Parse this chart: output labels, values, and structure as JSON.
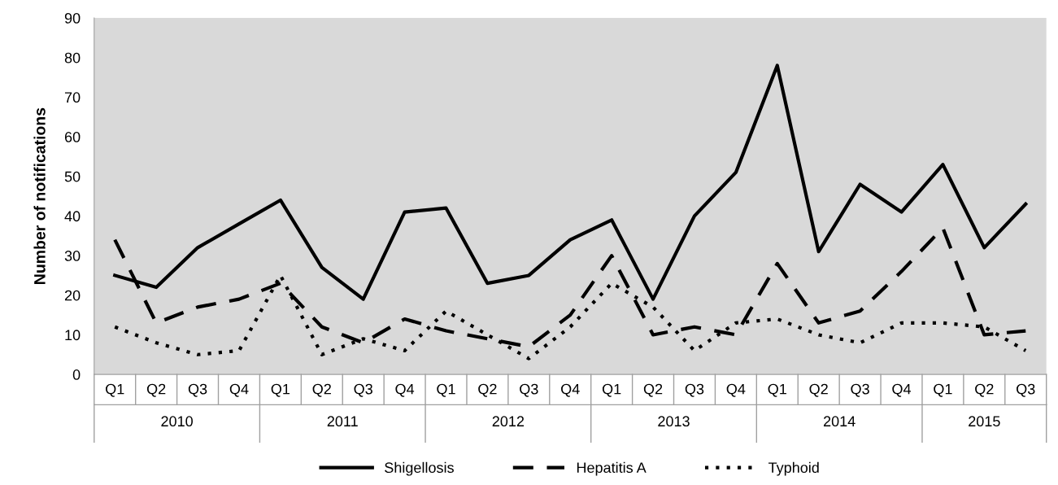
{
  "chart_data": {
    "type": "line",
    "ylabel": "Number of notifications",
    "categories": [
      "Q1",
      "Q2",
      "Q3",
      "Q4",
      "Q1",
      "Q2",
      "Q3",
      "Q4",
      "Q1",
      "Q2",
      "Q3",
      "Q4",
      "Q1",
      "Q2",
      "Q3",
      "Q4",
      "Q1",
      "Q2",
      "Q3",
      "Q4",
      "Q1",
      "Q2",
      "Q3"
    ],
    "annotations": [
      "2010",
      "2011",
      "2012",
      "2013",
      "2014",
      "2015"
    ],
    "series": [
      {
        "name": "Shigellosis",
        "color": "#000000",
        "line_style": "solid",
        "values": [
          25,
          22,
          32,
          38,
          44,
          27,
          19,
          41,
          42,
          23,
          25,
          34,
          39,
          19,
          40,
          51,
          78,
          31,
          48,
          41,
          53,
          32,
          43
        ]
      },
      {
        "name": "Hepatitis A",
        "color": "#000000",
        "line_style": "dashed",
        "values": [
          34,
          13,
          17,
          19,
          23,
          12,
          8,
          14,
          11,
          9,
          7,
          15,
          30,
          10,
          12,
          10,
          28,
          13,
          16,
          26,
          37,
          10,
          11
        ]
      },
      {
        "name": "Typhoid",
        "color": "#000000",
        "line_style": "dotted",
        "values": [
          12,
          8,
          5,
          6,
          25,
          5,
          9,
          6,
          16,
          10,
          4,
          12,
          23,
          17,
          6,
          13,
          14,
          10,
          8,
          13,
          13,
          12,
          6
        ]
      }
    ],
    "ylim": [
      0,
      90
    ],
    "yticks": [
      0,
      10,
      20,
      30,
      40,
      50,
      60,
      70,
      80,
      90
    ],
    "grid": false,
    "legend": "bottom",
    "marker": "none"
  }
}
